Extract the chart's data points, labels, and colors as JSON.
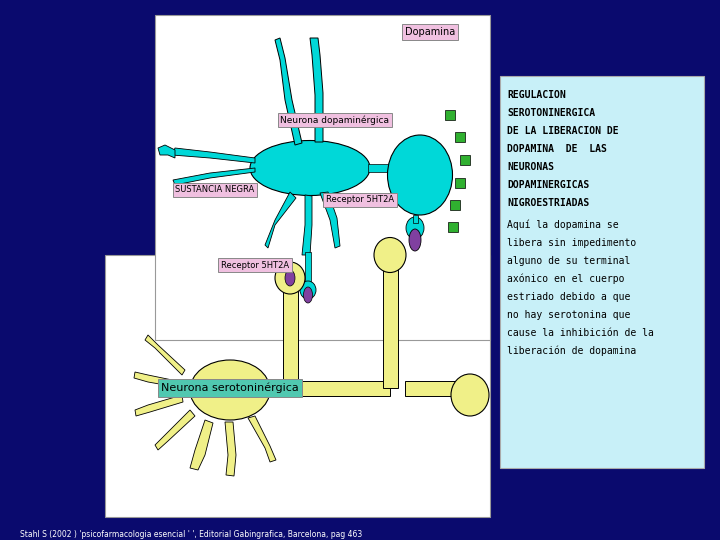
{
  "bg_color": "#0a0a6e",
  "info_box_color": "#c8f0f8",
  "info_title_lines": [
    "REGULACION",
    "SEROTONINERGICA",
    "DE LA LIBERACION DE",
    "DOPAMINA  DE  LAS",
    "NEURONAS",
    "DOPAMINERGICAS",
    "NIGROESTRIADAS"
  ],
  "info_body_lines": [
    "Aquí la dopamina se",
    "libera sin impedimento",
    "alguno de su terminal",
    "axónico en el cuerpo",
    "estriado debido a que",
    "no hay serotonina que",
    "cause la inhibición de la",
    "liberación de dopamina"
  ],
  "footer_text": "Stahl S (2002 ) 'psicofarmacologia esencial ' ', Editorial Gabingrafica, Barcelona, pag 463",
  "dopamina_label": "Dopamina",
  "neurona_dop_label": "Neurona dopaminérgica",
  "sustancia_negra_label": "SUSTANCIA NEGRA",
  "receptor1_label": "Receptor 5HT2A",
  "receptor2_label": "Receptor 5HT2A",
  "neurona_sero_label": "Neurona serotoninérgica",
  "label_box_color": "#f0c0e0",
  "sero_label_box_color": "#50c8b0",
  "cyan": "#00d8d8",
  "yellow": "#f0f088",
  "purple": "#8040a0",
  "green": "#30b030",
  "white": "#ffffff",
  "black": "#000000"
}
